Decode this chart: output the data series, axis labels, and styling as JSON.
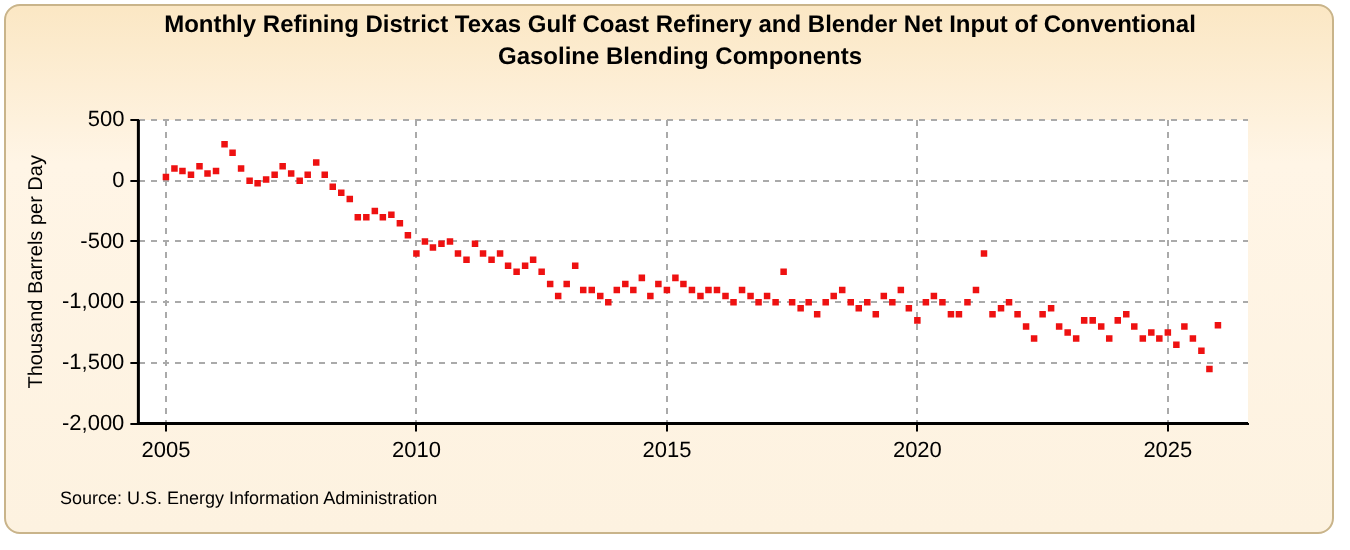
{
  "chart_data": {
    "type": "scatter",
    "title": "Monthly Refining District Texas Gulf Coast Refinery and Blender Net Input of Conventional Gasoline Blending Components",
    "ylabel": "Thousand Barrels per Day",
    "annotations": [
      "Source: U.S. Energy Information Administration"
    ],
    "x": [
      2005.0,
      2005.17,
      2005.33,
      2005.5,
      2005.67,
      2005.83,
      2006.0,
      2006.17,
      2006.33,
      2006.5,
      2006.67,
      2006.83,
      2007.0,
      2007.17,
      2007.33,
      2007.5,
      2007.67,
      2007.83,
      2008.0,
      2008.17,
      2008.33,
      2008.5,
      2008.67,
      2008.83,
      2009.0,
      2009.17,
      2009.33,
      2009.5,
      2009.67,
      2009.83,
      2010.0,
      2010.17,
      2010.33,
      2010.5,
      2010.67,
      2010.83,
      2011.0,
      2011.17,
      2011.33,
      2011.5,
      2011.67,
      2011.83,
      2012.0,
      2012.17,
      2012.33,
      2012.5,
      2012.67,
      2012.83,
      2013.0,
      2013.17,
      2013.33,
      2013.5,
      2013.67,
      2013.83,
      2014.0,
      2014.17,
      2014.33,
      2014.5,
      2014.67,
      2014.83,
      2015.0,
      2015.17,
      2015.33,
      2015.5,
      2015.67,
      2015.83,
      2016.0,
      2016.17,
      2016.33,
      2016.5,
      2016.67,
      2016.83,
      2017.0,
      2017.17,
      2017.33,
      2017.5,
      2017.67,
      2017.83,
      2018.0,
      2018.17,
      2018.33,
      2018.5,
      2018.67,
      2018.83,
      2019.0,
      2019.17,
      2019.33,
      2019.5,
      2019.67,
      2019.83,
      2020.0,
      2020.17,
      2020.33,
      2020.5,
      2020.67,
      2020.83,
      2021.0,
      2021.17,
      2021.33,
      2021.5,
      2021.67,
      2021.83,
      2022.0,
      2022.17,
      2022.33,
      2022.5,
      2022.67,
      2022.83,
      2023.0,
      2023.17,
      2023.33,
      2023.5,
      2023.67,
      2023.83,
      2024.0,
      2024.17,
      2024.33,
      2024.5,
      2024.67,
      2024.83,
      2025.0,
      2025.17,
      2025.33,
      2025.5,
      2025.67,
      2025.83,
      2026.0
    ],
    "series": [
      {
        "color": "#ee1111",
        "values": [
          30,
          100,
          80,
          50,
          120,
          60,
          80,
          300,
          230,
          100,
          0,
          -20,
          10,
          50,
          120,
          60,
          0,
          50,
          150,
          50,
          -50,
          -100,
          -150,
          -300,
          -300,
          -250,
          -300,
          -280,
          -350,
          -450,
          -600,
          -500,
          -550,
          -520,
          -500,
          -600,
          -650,
          -520,
          -600,
          -650,
          -600,
          -700,
          -750,
          -700,
          -650,
          -750,
          -850,
          -950,
          -850,
          -700,
          -900,
          -900,
          -950,
          -1000,
          -900,
          -850,
          -900,
          -800,
          -950,
          -850,
          -900,
          -800,
          -850,
          -900,
          -950,
          -900,
          -900,
          -950,
          -1000,
          -900,
          -950,
          -1000,
          -950,
          -1000,
          -750,
          -1000,
          -1050,
          -1000,
          -1100,
          -1000,
          -950,
          -900,
          -1000,
          -1050,
          -1000,
          -1100,
          -950,
          -1000,
          -900,
          -1050,
          -1150,
          -1000,
          -950,
          -1000,
          -1100,
          -1100,
          -1000,
          -900,
          -600,
          -1100,
          -1050,
          -1000,
          -1100,
          -1200,
          -1300,
          -1100,
          -1050,
          -1200,
          -1250,
          -1300,
          -1150,
          -1150,
          -1200,
          -1300,
          -1150,
          -1100,
          -1200,
          -1300,
          -1250,
          -1300,
          -1250,
          -1350,
          -1200,
          -1300,
          -1400,
          -1550,
          -1190
        ]
      }
    ],
    "xlim": [
      2004.45,
      2026.6
    ],
    "xticks": [
      2005,
      2010,
      2015,
      2020,
      2025
    ],
    "ylim": [
      -2000,
      500
    ],
    "yticks": [
      {
        "value": -2000,
        "label": "-2,000"
      },
      {
        "value": -1500,
        "label": "-1,500"
      },
      {
        "value": -1000,
        "label": "-1,000"
      },
      {
        "value": -500,
        "label": "-500"
      },
      0,
      500
    ],
    "grid": true,
    "legend": false,
    "marker": "square"
  }
}
